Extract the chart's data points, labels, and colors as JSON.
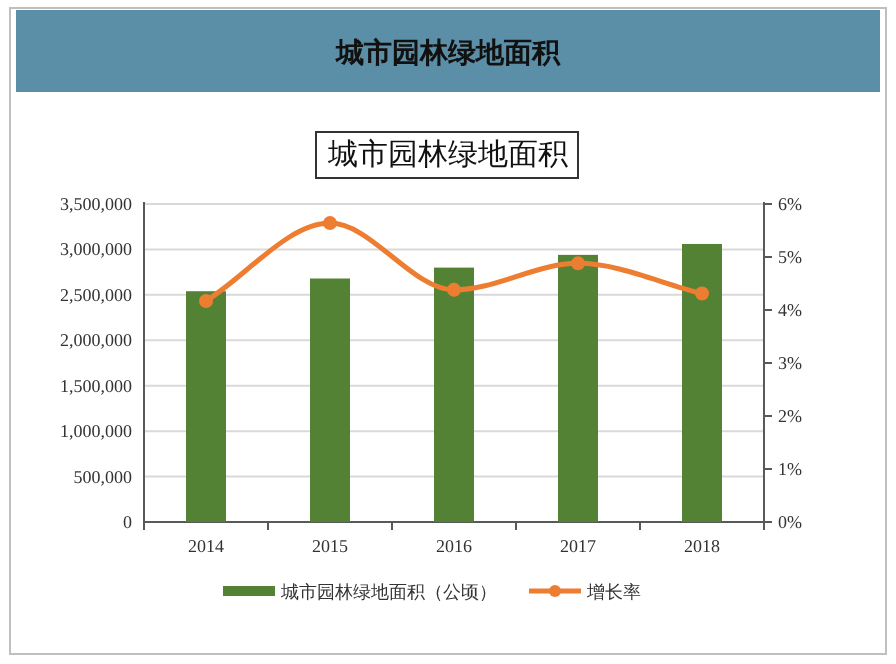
{
  "chart_data": {
    "type": "bar",
    "title": "城市园林绿地面积",
    "subtitle": "城市园林绿地面积",
    "categories": [
      "2014",
      "2015",
      "2016",
      "2017",
      "2018"
    ],
    "series": [
      {
        "name": "城市园林绿地面积（公顷）",
        "color": "#548235",
        "values": [
          2540000,
          2680000,
          2800000,
          2940000,
          3060000
        ]
      },
      {
        "name": "增长率",
        "type": "line",
        "axis": "y2",
        "color": "#ed7d31",
        "values": [
          4.17,
          5.64,
          4.38,
          4.88,
          4.31
        ]
      }
    ],
    "ylim": [
      0,
      3500000
    ],
    "yticks": [
      {
        "value": 0,
        "label": "0"
      },
      {
        "value": 500000,
        "label": "500,000"
      },
      {
        "value": 1000000,
        "label": "1,000,000"
      },
      {
        "value": 1500000,
        "label": "1,500,000"
      },
      {
        "value": 2000000,
        "label": "2,000,000"
      },
      {
        "value": 2500000,
        "label": "2,500,000"
      },
      {
        "value": 3000000,
        "label": "3,000,000"
      },
      {
        "value": 3500000,
        "label": "3,500,000"
      }
    ],
    "y2lim": [
      0,
      6
    ],
    "y2ticks": [
      {
        "value": 0,
        "label": "0%"
      },
      {
        "value": 1,
        "label": "1%"
      },
      {
        "value": 2,
        "label": "2%"
      },
      {
        "value": 3,
        "label": "3%"
      },
      {
        "value": 4,
        "label": "4%"
      },
      {
        "value": 5,
        "label": "5%"
      },
      {
        "value": 6,
        "label": "6%"
      }
    ],
    "grid": "y",
    "legend": "bottom",
    "marker": "circle"
  }
}
